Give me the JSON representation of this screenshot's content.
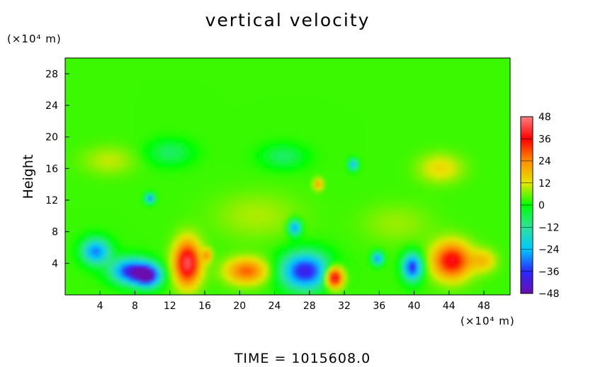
{
  "chart_data": {
    "type": "heatmap",
    "title": "vertical velocity",
    "ylabel": "Height",
    "xlabel": "",
    "x_unit": "(×10⁴ m)",
    "y_unit": "(×10⁴ m)",
    "xlim": [
      0,
      51
    ],
    "ylim": [
      0,
      30
    ],
    "x_ticks": [
      4,
      8,
      12,
      16,
      20,
      24,
      28,
      32,
      36,
      40,
      44,
      48
    ],
    "y_ticks": [
      4,
      8,
      12,
      16,
      20,
      24,
      28
    ],
    "colorbar": {
      "range": [
        -48,
        48
      ],
      "ticks": [
        48,
        36,
        24,
        12,
        0,
        -12,
        -24,
        -36,
        -48
      ],
      "tick_labels": [
        "48",
        "36",
        "24",
        "12",
        "0",
        "−12",
        "−24",
        "−36",
        "−48"
      ]
    },
    "features": [
      {
        "x": 3.5,
        "y": 5.5,
        "value": -30,
        "rx": 1.6,
        "ry": 1.6
      },
      {
        "x": 7.5,
        "y": 3.0,
        "value": -38,
        "rx": 2.2,
        "ry": 1.6
      },
      {
        "x": 9.5,
        "y": 2.4,
        "value": -40,
        "rx": 1.5,
        "ry": 1.4
      },
      {
        "x": 14.0,
        "y": 4.0,
        "value": 44,
        "rx": 1.5,
        "ry": 2.8
      },
      {
        "x": 16.3,
        "y": 5.0,
        "value": 20,
        "rx": 0.5,
        "ry": 0.8
      },
      {
        "x": 20.8,
        "y": 3.0,
        "value": 28,
        "rx": 2.4,
        "ry": 1.6
      },
      {
        "x": 26.3,
        "y": 8.5,
        "value": -30,
        "rx": 0.7,
        "ry": 1.0
      },
      {
        "x": 27.5,
        "y": 3.0,
        "value": -40,
        "rx": 2.7,
        "ry": 2.3
      },
      {
        "x": 30.8,
        "y": 2.2,
        "value": 48,
        "rx": 1.0,
        "ry": 1.3
      },
      {
        "x": 35.8,
        "y": 4.6,
        "value": -30,
        "rx": 0.6,
        "ry": 0.8
      },
      {
        "x": 39.8,
        "y": 3.5,
        "value": -38,
        "rx": 1.1,
        "ry": 1.7
      },
      {
        "x": 44.3,
        "y": 4.3,
        "value": 38,
        "rx": 2.2,
        "ry": 2.3
      },
      {
        "x": 48.0,
        "y": 4.3,
        "value": 16,
        "rx": 1.4,
        "ry": 1.4
      },
      {
        "x": 9.7,
        "y": 12.2,
        "value": -30,
        "rx": 0.5,
        "ry": 0.6
      },
      {
        "x": 33.0,
        "y": 16.5,
        "value": -26,
        "rx": 0.5,
        "ry": 0.7
      },
      {
        "x": 29.0,
        "y": 14.0,
        "value": 22,
        "rx": 0.5,
        "ry": 0.7
      },
      {
        "x": 43.0,
        "y": 16.0,
        "value": 14,
        "rx": 2.5,
        "ry": 1.8
      },
      {
        "x": 5.0,
        "y": 17.0,
        "value": 10,
        "rx": 3.0,
        "ry": 1.8
      },
      {
        "x": 22.0,
        "y": 10.0,
        "value": 9,
        "rx": 5.0,
        "ry": 3.0
      },
      {
        "x": 38.0,
        "y": 9.0,
        "value": 8,
        "rx": 4.0,
        "ry": 2.5
      },
      {
        "x": 12.0,
        "y": 18.0,
        "value": -8,
        "rx": 2.5,
        "ry": 1.6
      },
      {
        "x": 25.0,
        "y": 17.5,
        "value": -8,
        "rx": 2.5,
        "ry": 1.5
      }
    ],
    "background_value": 3,
    "grid": false
  },
  "footer": {
    "time_label": "TIME  =  1015608.0"
  },
  "colors": {
    "scale": [
      "#6a0dad",
      "#2a2aff",
      "#00c8ff",
      "#2ee39b",
      "#00ff00",
      "#e6e600",
      "#ff8c00",
      "#ff0000",
      "#ff8080"
    ]
  }
}
